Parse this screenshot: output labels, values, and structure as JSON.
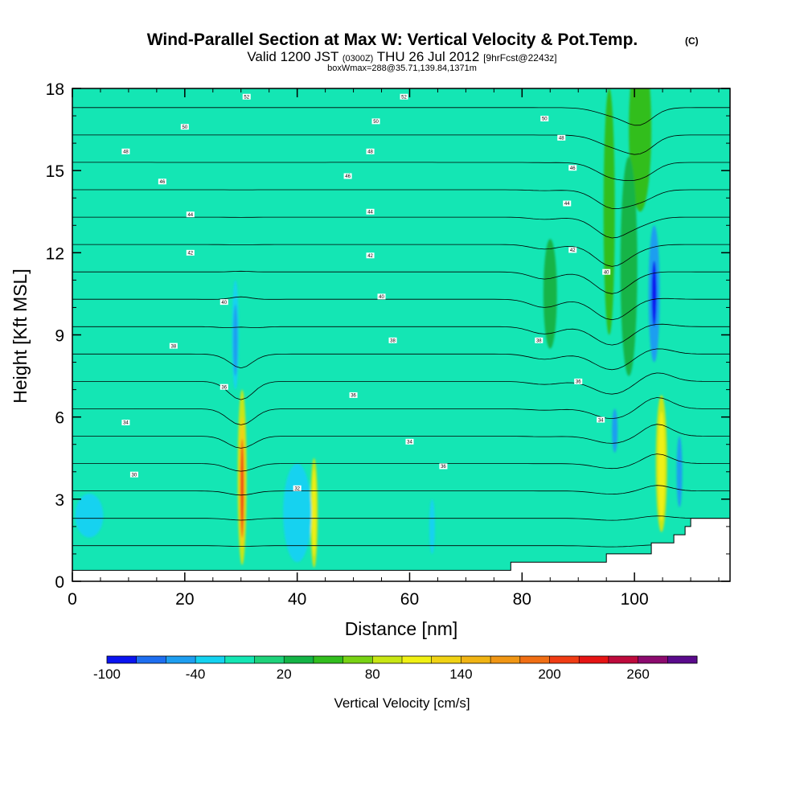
{
  "chart_data": {
    "type": "heatmap",
    "title": "Wind-Parallel Section at Max W: Vertical Velocity & Pot.Temp.",
    "title_mark": "(C)",
    "subtitle_parts": {
      "valid": "Valid 1200 JST",
      "utc": "(0300Z)",
      "date": "THU 26 Jul 2012",
      "fcst": "[9hrFcst@2243z]"
    },
    "subtitle2": "boxWmax=288@35.71,139.84,1371m",
    "xlabel": "Distance [nm]",
    "ylabel": "Height [Kft MSL]",
    "xlim": [
      0,
      117
    ],
    "ylim": [
      0,
      18
    ],
    "xticks": [
      0,
      20,
      40,
      60,
      80,
      100
    ],
    "yticks": [
      0,
      3,
      6,
      9,
      12,
      15,
      18
    ],
    "colorbar": {
      "label": "Vertical Velocity [cm/s]",
      "tick_labels": [
        "-100",
        "-40",
        "20",
        "80",
        "140",
        "200",
        "260"
      ],
      "colors": [
        "#0a14f0",
        "#1e6ef0",
        "#1e9ef0",
        "#14d2f0",
        "#14e6b4",
        "#1ed27a",
        "#14b446",
        "#32be1e",
        "#78d214",
        "#c8e614",
        "#f0f014",
        "#f0d214",
        "#f0b414",
        "#f09614",
        "#f06e14",
        "#f03c14",
        "#e61414",
        "#be0a3c",
        "#8c0a6e",
        "#5a0a8c"
      ]
    },
    "w_regions": [
      {
        "x": [
          95.5,
          1.0
        ],
        "y": [
          13.5,
          4.5
        ],
        "level": 7
      },
      {
        "x": [
          101,
          2.0
        ],
        "y": [
          16.5,
          3.0
        ],
        "level": 7
      },
      {
        "x": [
          99,
          1.5
        ],
        "y": [
          11.5,
          4.0
        ],
        "level": 6
      },
      {
        "x": [
          85,
          1.2
        ],
        "y": [
          10.5,
          2.0
        ],
        "level": 6
      },
      {
        "x": [
          30.2,
          0.8
        ],
        "y": [
          3.8,
          3.2
        ],
        "level": 9
      },
      {
        "x": [
          30.2,
          0.55
        ],
        "y": [
          3.6,
          2.4
        ],
        "level": 11
      },
      {
        "x": [
          30.2,
          0.3
        ],
        "y": [
          3.4,
          1.8
        ],
        "level": 15
      },
      {
        "x": [
          43,
          0.65
        ],
        "y": [
          2.5,
          2.0
        ],
        "level": 9
      },
      {
        "x": [
          43,
          0.35
        ],
        "y": [
          2.5,
          1.6
        ],
        "level": 10
      },
      {
        "x": [
          104.8,
          1.0
        ],
        "y": [
          4.3,
          2.5
        ],
        "level": 9
      },
      {
        "x": [
          104.8,
          0.6
        ],
        "y": [
          4.2,
          2.0
        ],
        "level": 10
      },
      {
        "x": [
          29,
          0.6
        ],
        "y": [
          9.0,
          2.0
        ],
        "level": 3
      },
      {
        "x": [
          29,
          0.4
        ],
        "y": [
          8.8,
          1.3
        ],
        "level": 2
      },
      {
        "x": [
          103.5,
          1.0
        ],
        "y": [
          10.5,
          2.5
        ],
        "level": 2
      },
      {
        "x": [
          103.5,
          0.45
        ],
        "y": [
          10.5,
          1.2
        ],
        "level": 0
      },
      {
        "x": [
          108,
          0.5
        ],
        "y": [
          4.0,
          1.3
        ],
        "level": 2
      },
      {
        "x": [
          96.5,
          0.5
        ],
        "y": [
          5.5,
          0.8
        ],
        "level": 2
      },
      {
        "x": [
          40,
          2.5
        ],
        "y": [
          2.5,
          1.8
        ],
        "level": 3
      },
      {
        "x": [
          64,
          0.5
        ],
        "y": [
          2.0,
          1.0
        ],
        "level": 3
      },
      {
        "x": [
          3,
          2.5
        ],
        "y": [
          2.4,
          0.8
        ],
        "level": 3
      }
    ],
    "terrain": [
      [
        0,
        0.4
      ],
      [
        78,
        0.4
      ],
      [
        78,
        0.7
      ],
      [
        95,
        0.7
      ],
      [
        95,
        1.0
      ],
      [
        103,
        1.0
      ],
      [
        103,
        1.4
      ],
      [
        107,
        1.4
      ],
      [
        107,
        1.7
      ],
      [
        109,
        1.7
      ],
      [
        109,
        2.0
      ],
      [
        110,
        2.0
      ],
      [
        110,
        2.3
      ],
      [
        117,
        2.3
      ]
    ],
    "theta_levels": [
      28,
      30,
      32,
      34,
      36,
      38,
      40,
      42,
      44,
      46,
      48,
      50,
      52,
      54,
      56,
      58,
      60,
      62
    ],
    "theta_labels": [
      {
        "t": "30",
        "x": 11,
        "y": 3.9
      },
      {
        "t": "32",
        "x": 40,
        "y": 3.4
      },
      {
        "t": "34",
        "x": 9.5,
        "y": 5.8
      },
      {
        "t": "34",
        "x": 60,
        "y": 5.1
      },
      {
        "t": "34",
        "x": 94,
        "y": 5.9
      },
      {
        "t": "36",
        "x": 66,
        "y": 4.2
      },
      {
        "t": "36",
        "x": 27,
        "y": 7.1
      },
      {
        "t": "36",
        "x": 50,
        "y": 6.8
      },
      {
        "t": "36",
        "x": 90,
        "y": 7.3
      },
      {
        "t": "38",
        "x": 18,
        "y": 8.6
      },
      {
        "t": "38",
        "x": 57,
        "y": 8.8
      },
      {
        "t": "38",
        "x": 83,
        "y": 8.8
      },
      {
        "t": "40",
        "x": 27,
        "y": 10.2
      },
      {
        "t": "40",
        "x": 55,
        "y": 10.4
      },
      {
        "t": "40",
        "x": 95,
        "y": 11.3
      },
      {
        "t": "42",
        "x": 21,
        "y": 12.0
      },
      {
        "t": "42",
        "x": 53,
        "y": 11.9
      },
      {
        "t": "42",
        "x": 89,
        "y": 12.1
      },
      {
        "t": "44",
        "x": 21,
        "y": 13.4
      },
      {
        "t": "44",
        "x": 53,
        "y": 13.5
      },
      {
        "t": "44",
        "x": 88,
        "y": 13.8
      },
      {
        "t": "46",
        "x": 16,
        "y": 14.6
      },
      {
        "t": "46",
        "x": 49,
        "y": 14.8
      },
      {
        "t": "46",
        "x": 89,
        "y": 15.1
      },
      {
        "t": "48",
        "x": 9.5,
        "y": 15.7
      },
      {
        "t": "48",
        "x": 53,
        "y": 15.7
      },
      {
        "t": "48",
        "x": 87,
        "y": 16.2
      },
      {
        "t": "50",
        "x": 20,
        "y": 16.6
      },
      {
        "t": "50",
        "x": 54,
        "y": 16.8
      },
      {
        "t": "50",
        "x": 84,
        "y": 16.9
      },
      {
        "t": "52",
        "x": 31,
        "y": 17.7
      },
      {
        "t": "52",
        "x": 59,
        "y": 17.7
      }
    ]
  }
}
